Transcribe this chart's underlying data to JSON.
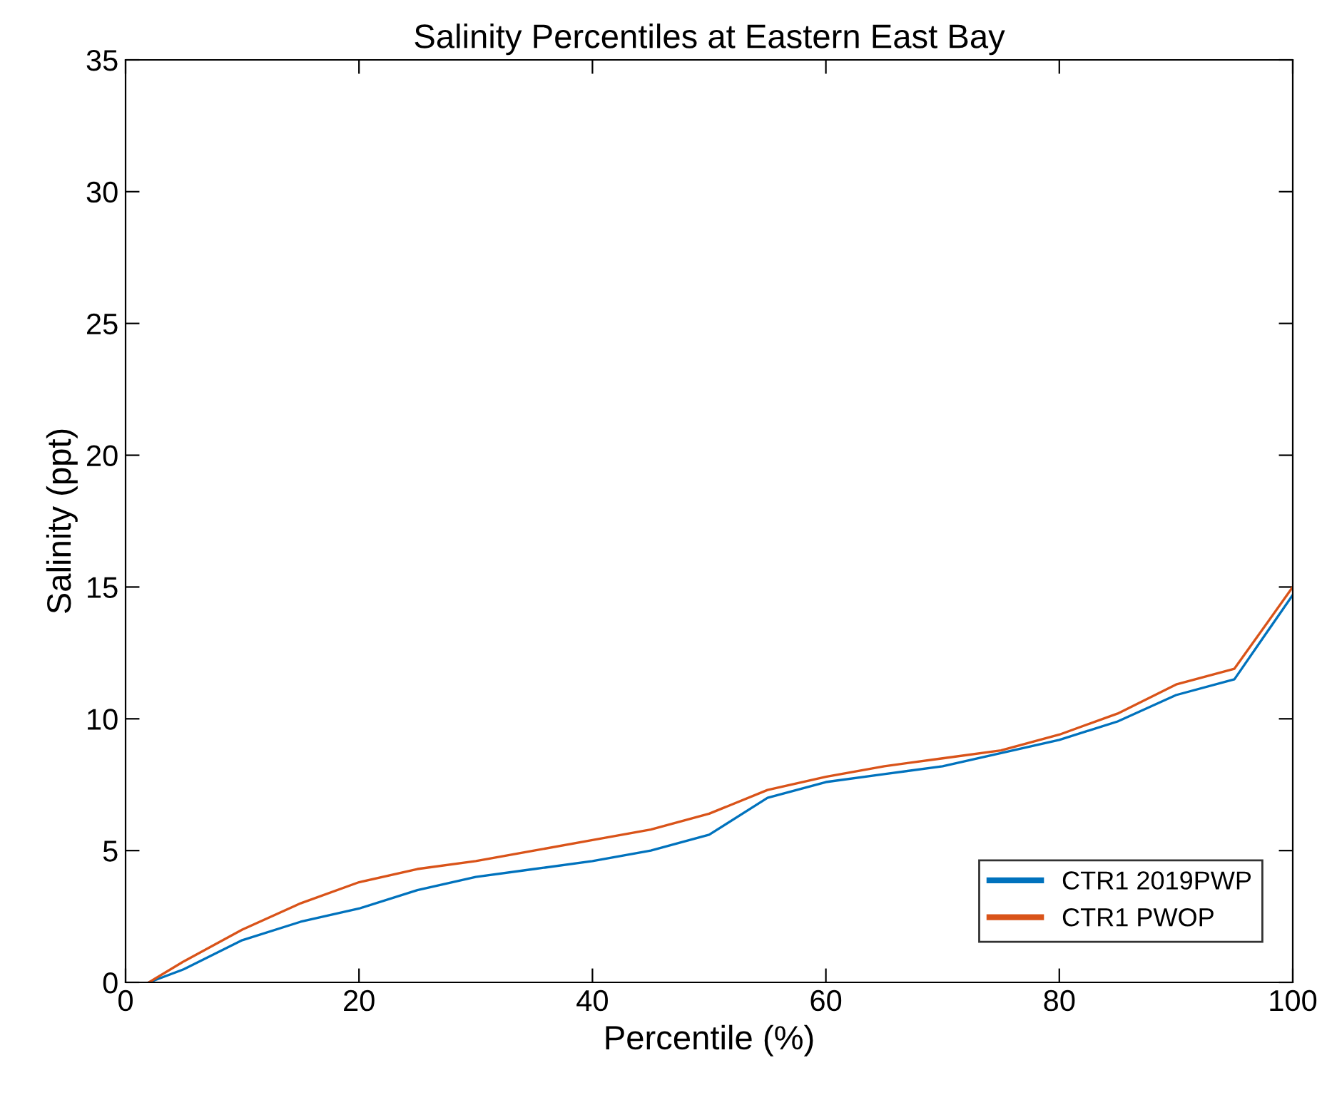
{
  "chart_data": {
    "type": "line",
    "title": "Salinity Percentiles at Eastern East Bay",
    "xlabel": "Percentile (%)",
    "ylabel": "Salinity (ppt)",
    "x": [
      2,
      5,
      10,
      15,
      20,
      25,
      30,
      35,
      40,
      45,
      50,
      55,
      60,
      65,
      70,
      75,
      80,
      85,
      90,
      95,
      100
    ],
    "series": [
      {
        "name": "CTR1 2019PWP",
        "color": "#0072bd",
        "values": [
          0,
          0.5,
          1.6,
          2.3,
          2.8,
          3.5,
          4.0,
          4.3,
          4.6,
          5.0,
          5.6,
          7.0,
          7.6,
          7.9,
          8.2,
          8.7,
          9.2,
          9.9,
          10.9,
          11.5,
          14.7
        ]
      },
      {
        "name": "CTR1 PWOP",
        "color": "#d95319",
        "values": [
          0,
          0.8,
          2.0,
          3.0,
          3.8,
          4.3,
          4.6,
          5.0,
          5.4,
          5.8,
          6.4,
          7.3,
          7.8,
          8.2,
          8.5,
          8.8,
          9.4,
          10.2,
          11.3,
          11.9,
          15.0
        ]
      }
    ],
    "xlim": [
      0,
      100
    ],
    "xticks": [
      0,
      20,
      40,
      60,
      80,
      100
    ],
    "ylim": [
      0,
      35
    ],
    "yticks": [
      0,
      5,
      10,
      15,
      20,
      25,
      30,
      35
    ],
    "grid": false,
    "legend": "bottom right",
    "marker": "none",
    "line_style": "solid"
  }
}
